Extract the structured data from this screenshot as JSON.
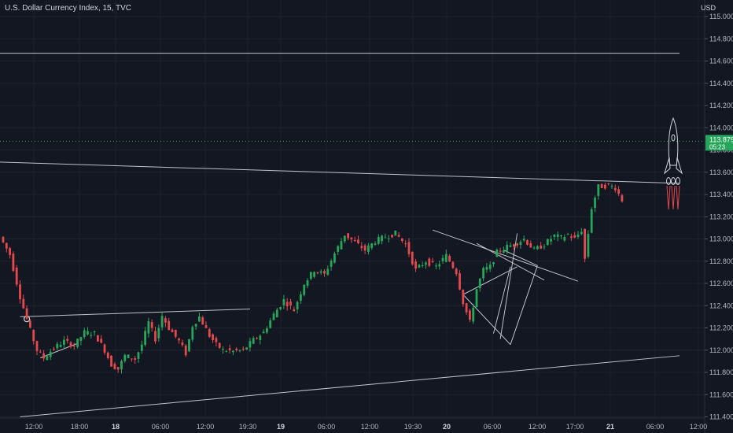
{
  "legend": {
    "symbol_line": "U.S. Dollar Currency Index, 15, TVC"
  },
  "price_axis": {
    "currency": "USD"
  },
  "current_price": {
    "value": "113.879",
    "countdown": "05:23",
    "color": "#26a65b"
  },
  "colors": {
    "background": "#131722",
    "up": "#26a65b",
    "down": "#e5484d",
    "drawing": "#d1d4dc"
  },
  "chart_data": {
    "type": "candlestick",
    "title": "",
    "ylim": [
      111.4,
      115.0
    ],
    "y_ticks": [
      "115.000",
      "114.800",
      "114.600",
      "114.400",
      "114.200",
      "114.000",
      "113.800",
      "113.600",
      "113.400",
      "113.200",
      "113.000",
      "112.800",
      "112.600",
      "112.400",
      "112.200",
      "112.000",
      "111.800",
      "111.600",
      "111.400"
    ],
    "x_ticks": [
      "12:00",
      "18:00",
      "18",
      "06:00",
      "12:00",
      "19:30",
      "19",
      "06:00",
      "12:00",
      "19:30",
      "20",
      "06:00",
      "12:00",
      "17:00",
      "21",
      "06:00",
      "12:00"
    ],
    "grid": true,
    "price_path": [
      [
        0,
        113.02
      ],
      [
        3,
        112.86
      ],
      [
        6,
        112.48
      ],
      [
        9,
        112.18
      ],
      [
        11,
        112.0
      ],
      [
        13,
        111.93
      ],
      [
        16,
        112.02
      ],
      [
        19,
        112.08
      ],
      [
        22,
        112.04
      ],
      [
        25,
        112.16
      ],
      [
        28,
        112.15
      ],
      [
        31,
        112.0
      ],
      [
        33,
        111.87
      ],
      [
        35,
        111.83
      ],
      [
        37,
        111.95
      ],
      [
        40,
        111.92
      ],
      [
        42,
        112.05
      ],
      [
        44,
        112.25
      ],
      [
        46,
        112.1
      ],
      [
        48,
        112.31
      ],
      [
        50,
        112.2
      ],
      [
        53,
        112.08
      ],
      [
        55,
        111.97
      ],
      [
        57,
        112.22
      ],
      [
        59,
        112.3
      ],
      [
        62,
        112.13
      ],
      [
        64,
        112.05
      ],
      [
        66,
        112.0
      ],
      [
        69,
        111.99
      ],
      [
        72,
        112.0
      ],
      [
        75,
        112.09
      ],
      [
        78,
        112.16
      ],
      [
        81,
        112.32
      ],
      [
        84,
        112.45
      ],
      [
        87,
        112.36
      ],
      [
        90,
        112.6
      ],
      [
        93,
        112.72
      ],
      [
        96,
        112.68
      ],
      [
        99,
        112.87
      ],
      [
        102,
        113.04
      ],
      [
        105,
        112.97
      ],
      [
        108,
        112.9
      ],
      [
        111,
        112.98
      ],
      [
        114,
        113.02
      ],
      [
        117,
        113.05
      ],
      [
        120,
        112.95
      ],
      [
        123,
        112.72
      ],
      [
        126,
        112.8
      ],
      [
        129,
        112.75
      ],
      [
        132,
        112.85
      ],
      [
        135,
        112.7
      ],
      [
        137,
        112.43
      ],
      [
        139,
        112.25
      ],
      [
        141,
        112.55
      ],
      [
        143,
        112.72
      ],
      [
        145,
        112.75
      ],
      [
        147,
        112.88
      ],
      [
        150,
        112.93
      ],
      [
        152,
        112.95
      ],
      [
        155,
        113.0
      ],
      [
        158,
        112.9
      ],
      [
        161,
        112.95
      ],
      [
        164,
        113.03
      ],
      [
        166,
        113.01
      ],
      [
        168,
        113.04
      ],
      [
        170,
        113.0
      ],
      [
        172,
        113.08
      ],
      [
        173,
        112.82
      ],
      [
        175,
        113.28
      ],
      [
        177,
        113.47
      ],
      [
        180,
        113.48
      ],
      [
        182,
        113.46
      ],
      [
        184,
        113.35
      ]
    ],
    "lines": [
      {
        "name": "upper-horizontal-level",
        "points": [
          [
            -10,
            114.67
          ],
          [
            200,
            114.67
          ]
        ]
      },
      {
        "name": "descending-trendline",
        "points": [
          [
            -10,
            113.7
          ],
          [
            200,
            113.5
          ]
        ]
      },
      {
        "name": "rising-channel-line",
        "points": [
          [
            5,
            111.4
          ],
          [
            200,
            111.95
          ]
        ]
      },
      {
        "name": "left-flat-trendline",
        "points": [
          [
            5,
            112.3
          ],
          [
            73,
            112.37
          ]
        ]
      },
      {
        "name": "short-rising-segment",
        "points": [
          [
            11,
            111.93
          ],
          [
            22,
            112.06
          ]
        ]
      },
      {
        "name": "pattern-top-trendline",
        "points": [
          [
            127,
            113.08
          ],
          [
            170,
            112.62
          ]
        ]
      },
      {
        "name": "pattern-neckline",
        "points": [
          [
            140,
            112.96
          ],
          [
            160,
            112.63
          ]
        ]
      },
      {
        "name": "diamond-left-upper",
        "points": [
          [
            136,
            112.5
          ],
          [
            152,
            112.75
          ]
        ]
      },
      {
        "name": "diamond-left-lower",
        "points": [
          [
            136,
            112.5
          ],
          [
            150,
            112.05
          ]
        ]
      },
      {
        "name": "diamond-right-lower",
        "points": [
          [
            150,
            112.05
          ],
          [
            158,
            112.76
          ]
        ]
      },
      {
        "name": "diamond-right-upper",
        "points": [
          [
            148,
            112.9
          ],
          [
            158,
            112.76
          ]
        ]
      },
      {
        "name": "pattern-vertical-break",
        "points": [
          [
            147,
            112.1
          ],
          [
            152,
            113.05
          ]
        ]
      },
      {
        "name": "pattern-inner-line",
        "points": [
          [
            145,
            112.15
          ],
          [
            150,
            112.75
          ]
        ]
      }
    ],
    "markers": [
      {
        "name": "left-circle-marker",
        "x": 7,
        "y": 112.28
      }
    ],
    "annotations": [
      {
        "name": "rocket-drawing",
        "x": 193,
        "y": 113.75
      }
    ]
  }
}
